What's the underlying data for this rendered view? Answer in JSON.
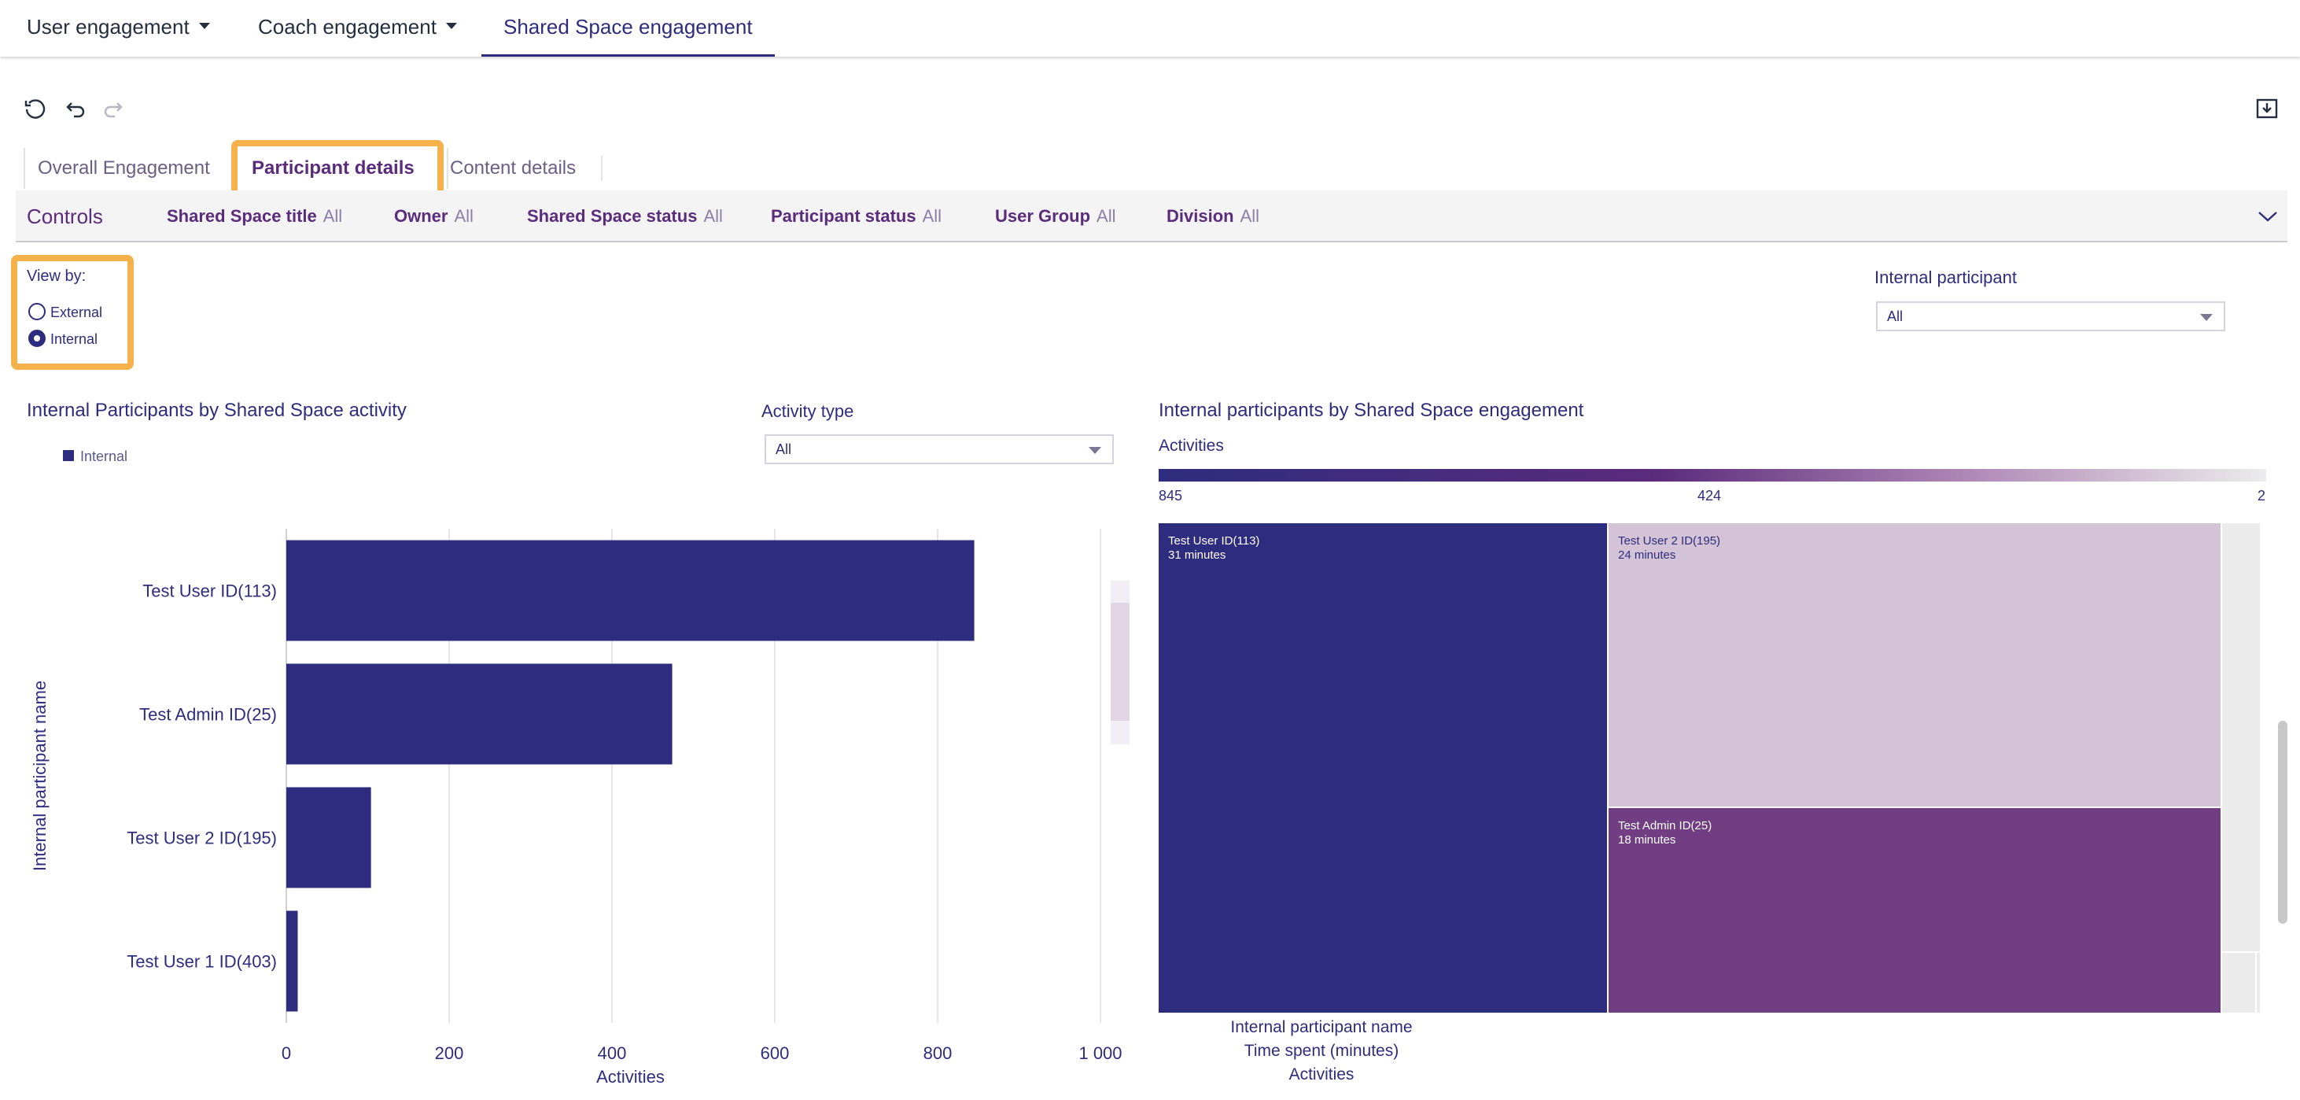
{
  "nav": {
    "tabs": [
      {
        "label": "User engagement",
        "has_caret": true
      },
      {
        "label": "Coach engagement",
        "has_caret": true
      },
      {
        "label": "Shared Space engagement",
        "active": true
      }
    ]
  },
  "toolbar": {
    "reset_icon": "reset-icon",
    "undo_icon": "undo-icon",
    "redo_icon": "redo-icon",
    "download_icon": "download-icon"
  },
  "sheet_tabs": [
    {
      "label": "Overall Engagement"
    },
    {
      "label": "Participant details",
      "active": true
    },
    {
      "label": "Content details"
    }
  ],
  "controls": {
    "title": "Controls",
    "items": [
      {
        "label": "Shared Space title",
        "value": "All"
      },
      {
        "label": "Owner",
        "value": "All"
      },
      {
        "label": "Shared Space status",
        "value": "All"
      },
      {
        "label": "Participant status",
        "value": "All"
      },
      {
        "label": "User Group",
        "value": "All"
      },
      {
        "label": "Division",
        "value": "All"
      }
    ]
  },
  "view_by": {
    "title": "View by:",
    "options": [
      "External",
      "Internal"
    ],
    "selected": "Internal"
  },
  "internal_participant": {
    "label": "Internal participant",
    "value": "All"
  },
  "activity_type": {
    "label": "Activity type",
    "value": "All"
  },
  "bar_visual": {
    "title": "Internal Participants by Shared Space activity",
    "legend": "Internal"
  },
  "treemap_visual": {
    "title": "Internal participants by Shared Space engagement",
    "color_title": "Activities",
    "scale_max": "845",
    "scale_mid": "424",
    "scale_min": "2",
    "axis_labels": [
      "Internal participant name",
      "Time spent (minutes)",
      "Activities"
    ]
  },
  "colors": {
    "primary": "#2e2c7e",
    "accent": "#5b2b7c",
    "highlight": "#f6b24a"
  },
  "chart_data": [
    {
      "type": "bar",
      "orientation": "horizontal",
      "title": "Internal Participants by Shared Space activity",
      "categories": [
        "Test User ID(113)",
        "Test Admin ID(25)",
        "Test User 2 ID(195)",
        "Test User 1 ID(403)"
      ],
      "values": [
        845,
        474,
        104,
        14
      ],
      "xlabel": "Activities",
      "ylabel": "Internal participant name",
      "xlim": [
        0,
        1000
      ],
      "xticks": [
        "0",
        "200",
        "400",
        "600",
        "800",
        "1 000"
      ],
      "legend": [
        "Internal"
      ],
      "grid": true
    },
    {
      "type": "treemap",
      "title": "Internal participants by Shared Space engagement",
      "cells": [
        {
          "name": "Test User ID(113)",
          "time": "31 minutes",
          "minutes": 31,
          "activities": 845,
          "color": "#2e2c7e"
        },
        {
          "name": "Test User 2 ID(195)",
          "time": "24 minutes",
          "minutes": 24,
          "activities": 104,
          "color": "#d4c3d6"
        },
        {
          "name": "Test Admin ID(25)",
          "time": "18 minutes",
          "minutes": 18,
          "activities": 474,
          "color": "#713e83"
        }
      ]
    }
  ]
}
